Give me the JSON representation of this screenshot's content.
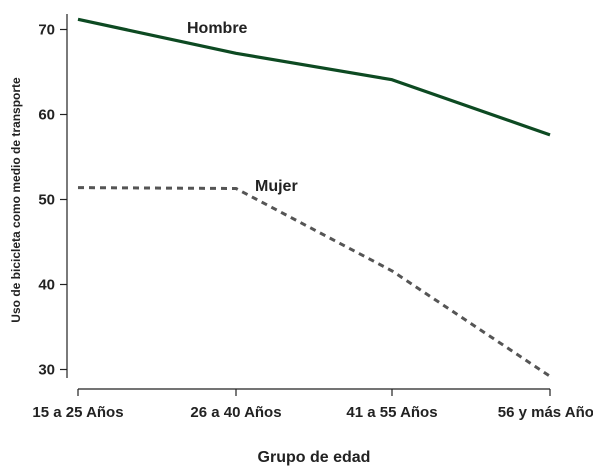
{
  "chart_data": {
    "type": "line",
    "categories": [
      "15 a 25 Años",
      "26 a 40 Años",
      "41 a 55 Años",
      "56 y más Años"
    ],
    "series": [
      {
        "name": "Hombre",
        "values": [
          71.2,
          67.2,
          64.1,
          57.6
        ],
        "color": "#0d4a22",
        "style": "solid"
      },
      {
        "name": "Mujer",
        "values": [
          51.4,
          51.3,
          41.6,
          29.2
        ],
        "color": "#555555",
        "style": "dashed"
      }
    ],
    "xlabel": "Grupo de edad",
    "ylabel": "Uso de bicicleta como medio de transporte",
    "yticks": [
      30,
      40,
      50,
      60,
      70
    ],
    "ylim": [
      28.3,
      72.5
    ],
    "legend": "inline labels",
    "grid": false
  }
}
